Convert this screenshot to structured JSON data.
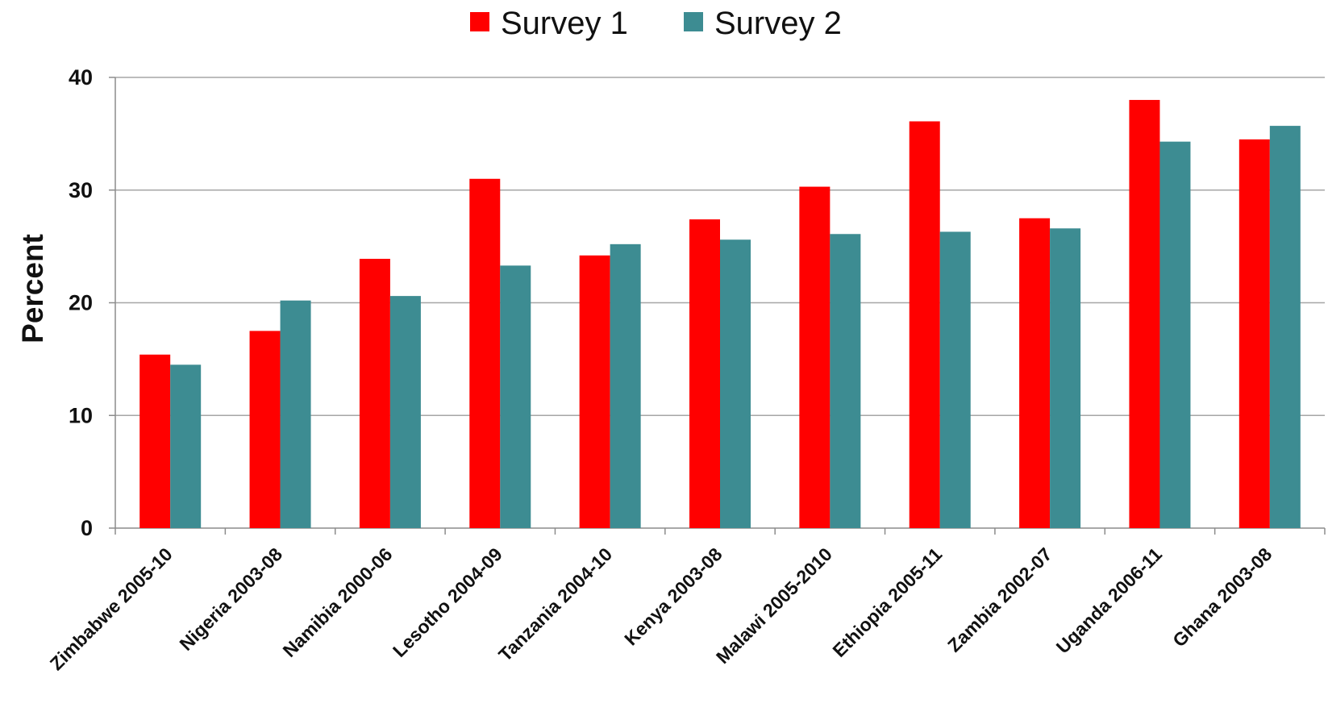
{
  "chart_data": {
    "type": "bar",
    "categories": [
      "Zimbabwe 2005-10",
      "Nigeria 2003-08",
      "Namibia 2000-06",
      "Lesotho 2004-09",
      "Tanzania 2004-10",
      "Kenya 2003-08",
      "Malawi 2005-2010",
      "Ethiopia 2005-11",
      "Zambia 2002-07",
      "Uganda 2006-11",
      "Ghana 2003-08"
    ],
    "series": [
      {
        "name": "Survey 1",
        "color": "#ff0000",
        "values": [
          15.4,
          17.5,
          23.9,
          31.0,
          24.2,
          27.4,
          30.3,
          36.1,
          27.5,
          38.0,
          34.5
        ]
      },
      {
        "name": "Survey 2",
        "color": "#3d8c92",
        "values": [
          14.5,
          20.2,
          20.6,
          23.3,
          25.2,
          25.6,
          26.1,
          26.3,
          26.6,
          34.3,
          35.7
        ]
      }
    ],
    "xlabel": "",
    "ylabel": "Percent",
    "ylim": [
      0,
      40
    ],
    "yticks": [
      0,
      10,
      20,
      30,
      40
    ],
    "grid": true,
    "legend_position": "top-center"
  }
}
